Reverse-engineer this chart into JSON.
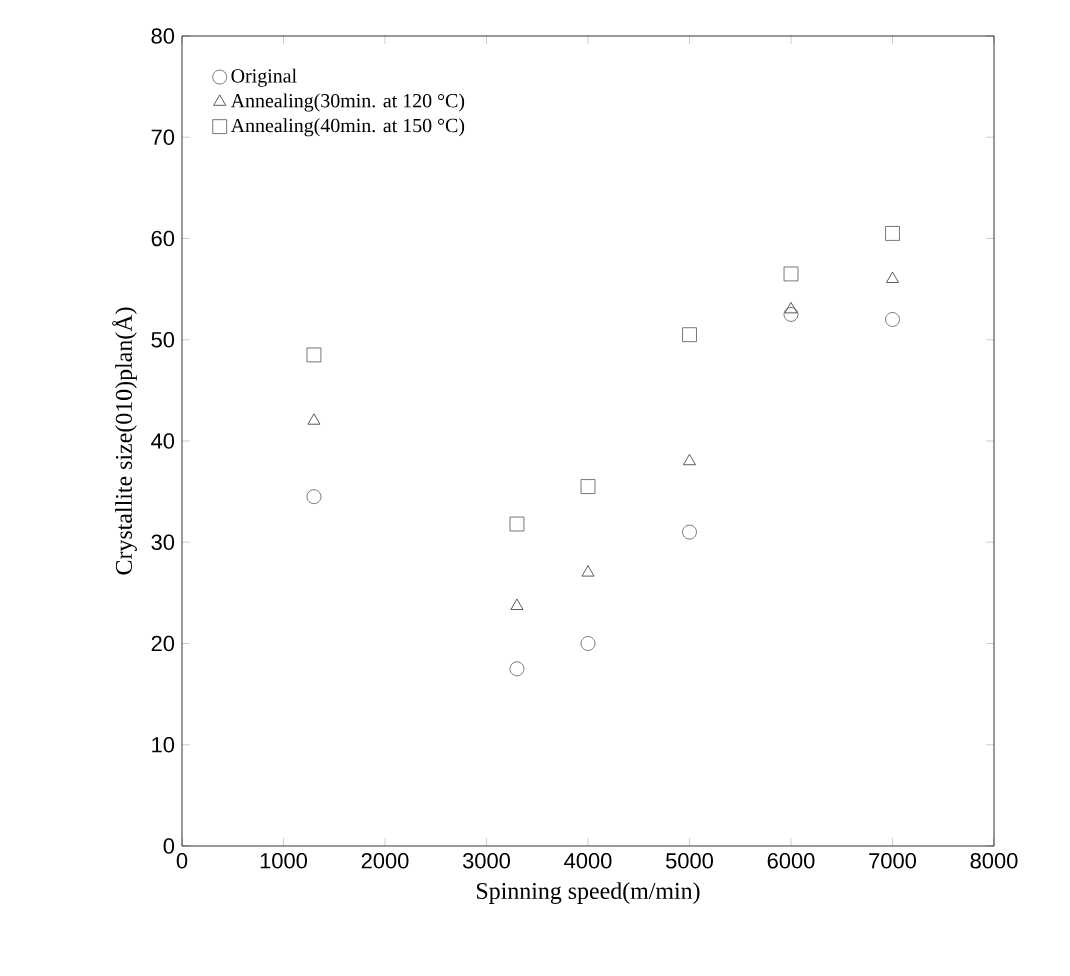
{
  "chart_data": {
    "type": "scatter",
    "xlabel": "Spinning speed(m/min)",
    "ylabel": "Crystallite size(010)plan(Å)",
    "xlim": [
      0,
      8000
    ],
    "xticks": [
      0,
      1000,
      2000,
      3000,
      4000,
      5000,
      6000,
      7000,
      8000
    ],
    "ylim": [
      0,
      80
    ],
    "yticks": [
      0,
      10,
      20,
      30,
      40,
      50,
      60,
      70,
      80
    ],
    "grid": false,
    "legend": "top left",
    "series": [
      {
        "name": "Original",
        "color": "#555555",
        "marker": "circle",
        "x": [
          1300,
          3300,
          4000,
          5000,
          6000,
          7000
        ],
        "values": [
          34.5,
          17.5,
          20,
          31,
          52.5,
          52
        ]
      },
      {
        "name": "Annealing(30min. at 120 °C)",
        "color": "#333333",
        "marker": "triangle",
        "x": [
          1300,
          3300,
          4000,
          5000,
          6000,
          7000
        ],
        "values": [
          42,
          23.7,
          27,
          38,
          53,
          56
        ]
      },
      {
        "name": "Annealing(40min. at 150 °C)",
        "color": "#555555",
        "marker": "square",
        "x": [
          1300,
          3300,
          4000,
          5000,
          6000,
          7000
        ],
        "values": [
          48.5,
          31.8,
          35.5,
          50.5,
          56.5,
          60.5
        ]
      }
    ]
  }
}
